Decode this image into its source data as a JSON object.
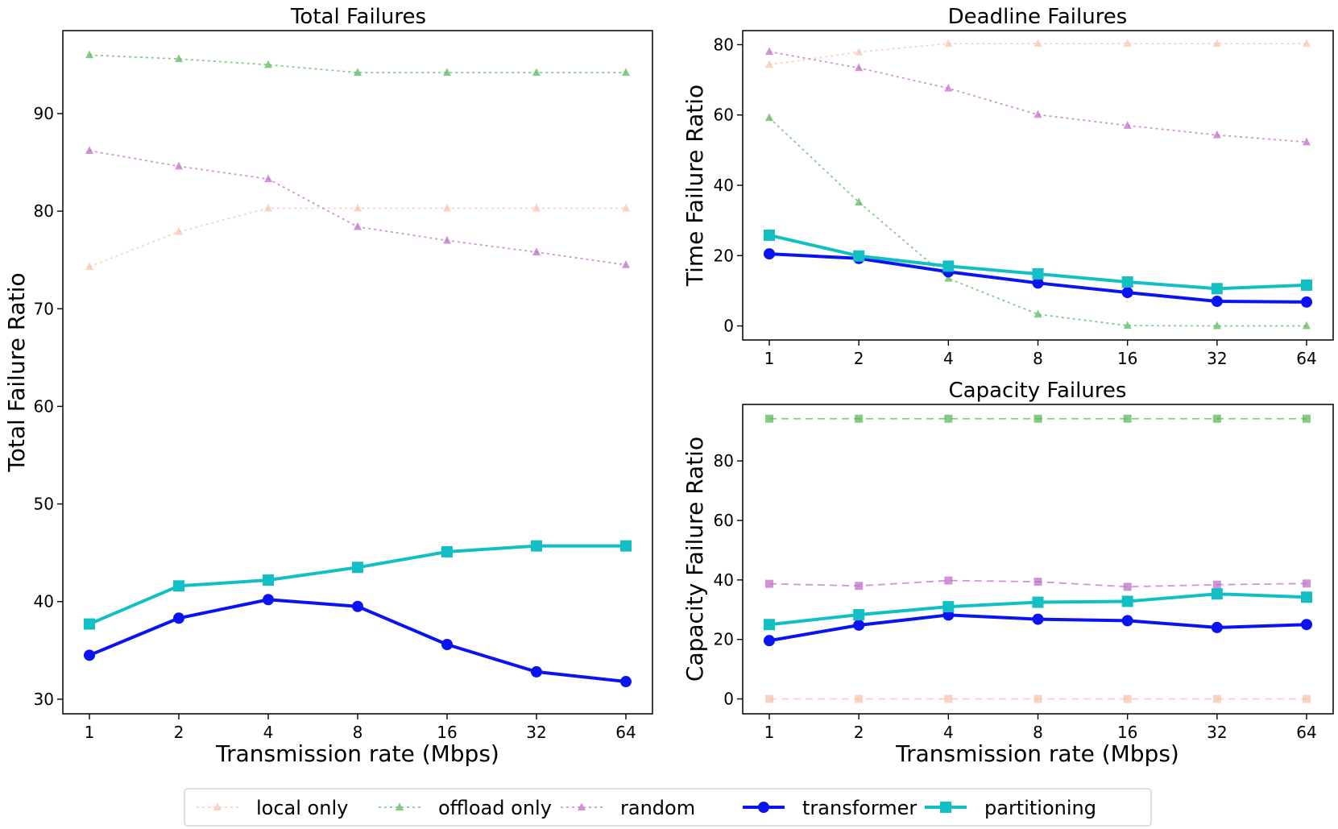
{
  "chart_data": [
    {
      "id": "total",
      "type": "line",
      "title": "Total Failures",
      "xlabel": "Transmission rate (Mbps)",
      "ylabel": "Total Failure Ratio",
      "categories": [
        "1",
        "2",
        "4",
        "8",
        "16",
        "32",
        "64"
      ],
      "ylim": [
        28.5,
        98.5
      ],
      "yticks": [
        30,
        40,
        50,
        60,
        70,
        80,
        90
      ],
      "series": [
        {
          "name": "local only",
          "marker": "triangle",
          "values": [
            74.3,
            77.9,
            80.3,
            80.3,
            80.3,
            80.3,
            80.3
          ]
        },
        {
          "name": "offload only",
          "marker": "triangle",
          "values": [
            96.0,
            95.6,
            95.0,
            94.2,
            94.2,
            94.2,
            94.2
          ]
        },
        {
          "name": "random",
          "marker": "triangle",
          "values": [
            86.2,
            84.6,
            83.3,
            78.4,
            77.0,
            75.8,
            74.5
          ]
        },
        {
          "name": "transformer",
          "marker": "circle",
          "values": [
            34.5,
            38.3,
            40.2,
            39.5,
            35.6,
            32.8,
            31.8
          ]
        },
        {
          "name": "partitioning",
          "marker": "square",
          "values": [
            37.7,
            41.6,
            42.2,
            43.5,
            45.1,
            45.7,
            45.7
          ]
        }
      ]
    },
    {
      "id": "deadline",
      "type": "line",
      "title": "Deadline Failures",
      "xlabel": "",
      "ylabel": "Time Failure Ratio",
      "categories": [
        "1",
        "2",
        "4",
        "8",
        "16",
        "32",
        "64"
      ],
      "ylim": [
        -4,
        84
      ],
      "yticks": [
        0,
        20,
        40,
        60,
        80
      ],
      "series": [
        {
          "name": "local only",
          "marker": "triangle",
          "values": [
            74.3,
            77.9,
            80.3,
            80.3,
            80.3,
            80.3,
            80.3
          ]
        },
        {
          "name": "offload only",
          "marker": "triangle",
          "values": [
            59.2,
            35.2,
            13.5,
            3.3,
            0.1,
            0.0,
            0.0
          ]
        },
        {
          "name": "random",
          "marker": "triangle",
          "values": [
            78.0,
            73.4,
            67.6,
            60.1,
            57.0,
            54.3,
            52.3
          ]
        },
        {
          "name": "transformer",
          "marker": "circle",
          "values": [
            20.5,
            19.2,
            15.4,
            12.2,
            9.5,
            7.0,
            6.8
          ]
        },
        {
          "name": "partitioning",
          "marker": "square",
          "values": [
            25.8,
            19.9,
            17.0,
            14.8,
            12.5,
            10.6,
            11.6
          ]
        }
      ]
    },
    {
      "id": "capacity",
      "type": "line",
      "title": "Capacity Failures",
      "xlabel": "Transmission rate (Mbps)",
      "ylabel": "Capacity Failure Ratio",
      "categories": [
        "1",
        "2",
        "4",
        "8",
        "16",
        "32",
        "64"
      ],
      "ylim": [
        -5,
        99
      ],
      "yticks": [
        0,
        20,
        40,
        60,
        80
      ],
      "series": [
        {
          "name": "local only",
          "marker": "square",
          "values": [
            0.0,
            0.0,
            0.0,
            0.0,
            0.0,
            0.0,
            0.0
          ]
        },
        {
          "name": "offload only",
          "marker": "square",
          "values": [
            94.2,
            94.2,
            94.2,
            94.2,
            94.2,
            94.2,
            94.2
          ]
        },
        {
          "name": "random",
          "marker": "square",
          "values": [
            38.7,
            38.0,
            39.8,
            39.4,
            37.7,
            38.4,
            38.8
          ]
        },
        {
          "name": "transformer",
          "marker": "circle",
          "values": [
            19.6,
            24.8,
            28.2,
            26.8,
            26.3,
            24.0,
            25.0
          ]
        },
        {
          "name": "partitioning",
          "marker": "square",
          "values": [
            25.0,
            28.3,
            31.0,
            32.5,
            32.8,
            35.3,
            34.2
          ]
        }
      ]
    }
  ],
  "legend": {
    "placement": "bottom-center",
    "items": [
      "local only",
      "offload only",
      "random",
      "transformer",
      "partitioning"
    ]
  },
  "colors": {
    "local only": "#f7b89a",
    "offload only": "#5cb85c",
    "random": "#c070c8",
    "transformer": "#0a14f0",
    "partitioning": "#12c0c4"
  }
}
